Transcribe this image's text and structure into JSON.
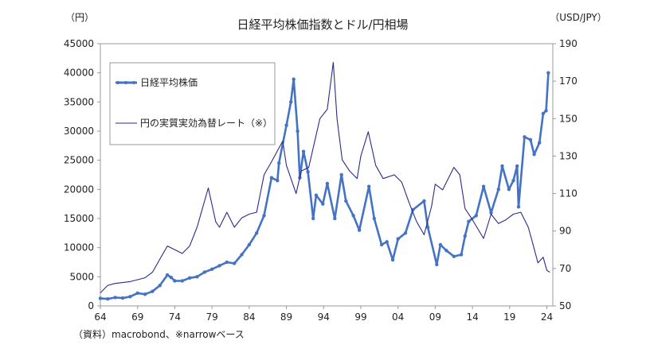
{
  "chart_data": {
    "type": "line",
    "title": "日経平均株価指数とドル/円相場",
    "left_unit": "（円）",
    "right_unit": "（USD/JPY）",
    "source": "（資料）macrobond、※narrowベース",
    "x_tick_labels": [
      "64",
      "69",
      "74",
      "79",
      "84",
      "89",
      "94",
      "99",
      "04",
      "09",
      "14",
      "19",
      "24"
    ],
    "x_tick_years": [
      1964,
      1969,
      1974,
      1979,
      1984,
      1989,
      1994,
      1999,
      2004,
      2009,
      2014,
      2019,
      2024
    ],
    "xlim": [
      1964,
      2024.8
    ],
    "left_ylim": [
      0,
      45000
    ],
    "left_ticks": [
      0,
      5000,
      10000,
      15000,
      20000,
      25000,
      30000,
      35000,
      40000,
      45000
    ],
    "right_ylim": [
      50,
      190
    ],
    "right_ticks": [
      50,
      70,
      90,
      110,
      130,
      150,
      170,
      190
    ],
    "legend_position": "top-left",
    "series": [
      {
        "name": "日経平均株価",
        "axis": "left",
        "color": "#4472C4",
        "style": "thick-markers",
        "points": [
          [
            1964.0,
            1300
          ],
          [
            1965.0,
            1200
          ],
          [
            1966.0,
            1450
          ],
          [
            1967.0,
            1350
          ],
          [
            1968.0,
            1600
          ],
          [
            1969.0,
            2200
          ],
          [
            1970.0,
            2000
          ],
          [
            1971.0,
            2500
          ],
          [
            1972.0,
            3500
          ],
          [
            1973.0,
            5300
          ],
          [
            1973.5,
            4900
          ],
          [
            1974.0,
            4300
          ],
          [
            1975.0,
            4300
          ],
          [
            1976.0,
            4800
          ],
          [
            1977.0,
            5000
          ],
          [
            1978.0,
            5800
          ],
          [
            1979.0,
            6300
          ],
          [
            1980.0,
            6900
          ],
          [
            1981.0,
            7500
          ],
          [
            1982.0,
            7300
          ],
          [
            1983.0,
            8800
          ],
          [
            1984.0,
            10500
          ],
          [
            1985.0,
            12500
          ],
          [
            1986.0,
            15500
          ],
          [
            1987.0,
            22000
          ],
          [
            1987.8,
            21500
          ],
          [
            1988.0,
            24500
          ],
          [
            1989.0,
            31000
          ],
          [
            1989.6,
            35000
          ],
          [
            1989.98,
            38900
          ],
          [
            1990.5,
            30000
          ],
          [
            1990.8,
            22000
          ],
          [
            1991.3,
            26500
          ],
          [
            1991.9,
            23000
          ],
          [
            1992.6,
            15000
          ],
          [
            1993.0,
            19000
          ],
          [
            1993.9,
            17500
          ],
          [
            1994.5,
            21000
          ],
          [
            1995.5,
            15000
          ],
          [
            1996.4,
            22500
          ],
          [
            1997.0,
            18000
          ],
          [
            1998.0,
            15500
          ],
          [
            1998.8,
            13000
          ],
          [
            2000.1,
            20500
          ],
          [
            2000.8,
            15000
          ],
          [
            2001.8,
            10500
          ],
          [
            2002.5,
            11000
          ],
          [
            2003.3,
            7900
          ],
          [
            2004.0,
            11500
          ],
          [
            2005.0,
            12500
          ],
          [
            2006.0,
            16500
          ],
          [
            2007.5,
            18000
          ],
          [
            2008.0,
            13500
          ],
          [
            2009.2,
            7100
          ],
          [
            2009.7,
            10500
          ],
          [
            2010.5,
            9500
          ],
          [
            2011.5,
            8500
          ],
          [
            2012.5,
            8800
          ],
          [
            2013.0,
            12000
          ],
          [
            2013.5,
            14500
          ],
          [
            2014.5,
            15500
          ],
          [
            2015.5,
            20500
          ],
          [
            2016.5,
            16000
          ],
          [
            2017.5,
            20000
          ],
          [
            2018.0,
            24000
          ],
          [
            2018.9,
            20000
          ],
          [
            2019.5,
            21500
          ],
          [
            2020.0,
            24000
          ],
          [
            2020.2,
            17000
          ],
          [
            2021.0,
            29000
          ],
          [
            2021.8,
            28500
          ],
          [
            2022.3,
            26000
          ],
          [
            2023.0,
            28000
          ],
          [
            2023.5,
            33000
          ],
          [
            2023.9,
            33500
          ],
          [
            2024.2,
            40000
          ]
        ]
      },
      {
        "name": "円の実質実効為替レート（※）",
        "axis": "right",
        "color": "#2A2A8A",
        "style": "thin",
        "points": [
          [
            1964.0,
            57
          ],
          [
            1965.0,
            61
          ],
          [
            1966.0,
            62
          ],
          [
            1968.0,
            63
          ],
          [
            1970.0,
            65
          ],
          [
            1971.0,
            68
          ],
          [
            1972.0,
            75
          ],
          [
            1973.0,
            82
          ],
          [
            1974.0,
            80
          ],
          [
            1975.0,
            78
          ],
          [
            1976.0,
            82
          ],
          [
            1977.0,
            92
          ],
          [
            1978.5,
            113
          ],
          [
            1979.5,
            95
          ],
          [
            1980.0,
            92
          ],
          [
            1981.0,
            100
          ],
          [
            1982.0,
            92
          ],
          [
            1983.0,
            97
          ],
          [
            1984.0,
            99
          ],
          [
            1985.0,
            100
          ],
          [
            1986.0,
            120
          ],
          [
            1987.0,
            127
          ],
          [
            1988.5,
            138
          ],
          [
            1989.0,
            125
          ],
          [
            1990.3,
            110
          ],
          [
            1991.0,
            122
          ],
          [
            1992.0,
            124
          ],
          [
            1993.5,
            150
          ],
          [
            1994.5,
            155
          ],
          [
            1995.3,
            180
          ],
          [
            1995.8,
            150
          ],
          [
            1996.5,
            128
          ],
          [
            1997.5,
            122
          ],
          [
            1998.5,
            118
          ],
          [
            1999.0,
            130
          ],
          [
            2000.0,
            143
          ],
          [
            2001.0,
            125
          ],
          [
            2002.0,
            118
          ],
          [
            2003.5,
            120
          ],
          [
            2004.5,
            116
          ],
          [
            2005.5,
            105
          ],
          [
            2006.5,
            95
          ],
          [
            2007.5,
            88
          ],
          [
            2008.5,
            103
          ],
          [
            2009.0,
            115
          ],
          [
            2010.0,
            112
          ],
          [
            2011.5,
            124
          ],
          [
            2012.3,
            120
          ],
          [
            2013.0,
            102
          ],
          [
            2014.0,
            96
          ],
          [
            2015.5,
            86
          ],
          [
            2016.5,
            99
          ],
          [
            2017.5,
            94
          ],
          [
            2018.5,
            96
          ],
          [
            2019.5,
            99
          ],
          [
            2020.5,
            100
          ],
          [
            2021.5,
            92
          ],
          [
            2022.0,
            85
          ],
          [
            2022.8,
            73
          ],
          [
            2023.5,
            76
          ],
          [
            2024.0,
            69
          ],
          [
            2024.4,
            68
          ]
        ]
      }
    ]
  }
}
